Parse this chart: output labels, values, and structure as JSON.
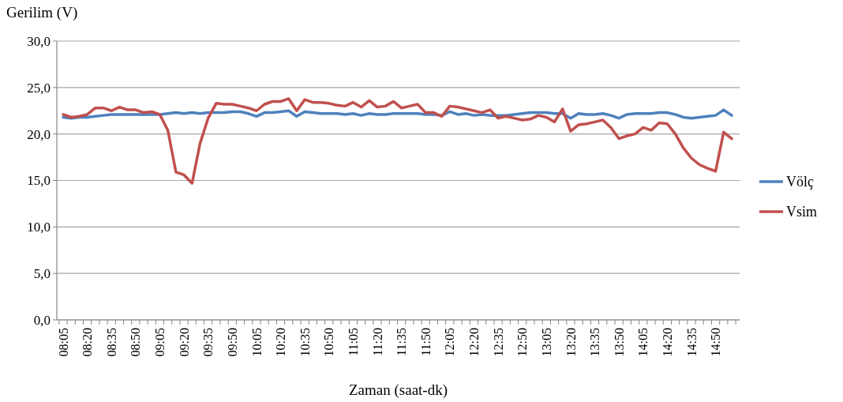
{
  "chart_data": {
    "type": "line",
    "ylabel": "Gerilim (V)",
    "xlabel": "Zaman (saat-dk)",
    "categories": [
      "08:05",
      null,
      null,
      "08:20",
      null,
      null,
      "08:35",
      null,
      null,
      "08:50",
      null,
      null,
      "09:05",
      null,
      null,
      "09:20",
      null,
      null,
      "09:35",
      null,
      null,
      "09:50",
      null,
      null,
      "10:05",
      null,
      null,
      "10:20",
      null,
      null,
      "10:35",
      null,
      null,
      "10:50",
      null,
      null,
      "11:05",
      null,
      null,
      "11:20",
      null,
      null,
      "11:35",
      null,
      null,
      "11:50",
      null,
      null,
      "12:05",
      null,
      null,
      "12:20",
      null,
      null,
      "12:35",
      null,
      null,
      "12:50",
      null,
      null,
      "13:05",
      null,
      null,
      "13:20",
      null,
      null,
      "13:35",
      null,
      null,
      "13:50",
      null,
      null,
      "14:05",
      null,
      null,
      "14:20",
      null,
      null,
      "14:35",
      null,
      null,
      "14:50",
      null,
      null
    ],
    "series": [
      {
        "name": "Völç",
        "color": "#4f81bd",
        "values": [
          21.8,
          21.7,
          21.8,
          21.8,
          21.9,
          22.0,
          22.1,
          22.1,
          22.1,
          22.1,
          22.1,
          22.1,
          22.1,
          22.2,
          22.3,
          22.2,
          22.3,
          22.2,
          22.3,
          22.3,
          22.3,
          22.4,
          22.4,
          22.2,
          21.9,
          22.3,
          22.3,
          22.4,
          22.5,
          21.9,
          22.4,
          22.3,
          22.2,
          22.2,
          22.2,
          22.1,
          22.2,
          22.0,
          22.2,
          22.1,
          22.1,
          22.2,
          22.2,
          22.2,
          22.2,
          22.1,
          22.1,
          22.0,
          22.4,
          22.1,
          22.2,
          22.0,
          22.1,
          22.0,
          22.0,
          22.0,
          22.1,
          22.2,
          22.3,
          22.3,
          22.3,
          22.2,
          22.2,
          21.7,
          22.2,
          22.1,
          22.1,
          22.2,
          22.0,
          21.7,
          22.1,
          22.2,
          22.2,
          22.2,
          22.3,
          22.3,
          22.1,
          21.8,
          21.7,
          21.8,
          21.9,
          22.0,
          22.6,
          22.0
        ]
      },
      {
        "name": "Vsim",
        "color": "#c0504d",
        "values": [
          22.1,
          21.8,
          21.9,
          22.1,
          22.8,
          22.8,
          22.5,
          22.9,
          22.6,
          22.6,
          22.3,
          22.4,
          22.1,
          20.4,
          15.9,
          15.6,
          14.7,
          19.0,
          21.7,
          23.3,
          23.2,
          23.2,
          23.0,
          22.8,
          22.5,
          23.2,
          23.5,
          23.5,
          23.8,
          22.5,
          23.7,
          23.4,
          23.4,
          23.3,
          23.1,
          23.0,
          23.4,
          22.9,
          23.6,
          22.9,
          23.0,
          23.5,
          22.8,
          23.0,
          23.2,
          22.3,
          22.3,
          21.9,
          23.0,
          22.9,
          22.7,
          22.5,
          22.3,
          22.6,
          21.7,
          21.9,
          21.7,
          21.5,
          21.6,
          22.0,
          21.8,
          21.3,
          22.7,
          20.3,
          21.0,
          21.1,
          21.3,
          21.5,
          20.7,
          19.5,
          19.8,
          20.0,
          20.7,
          20.4,
          21.2,
          21.1,
          20.0,
          18.5,
          17.4,
          16.7,
          16.3,
          16.0,
          20.2,
          19.5
        ]
      }
    ],
    "ylim": [
      0,
      30
    ],
    "yticks": [
      {
        "value": 0,
        "label": "0,0"
      },
      {
        "value": 5,
        "label": "5,0"
      },
      {
        "value": 10,
        "label": "10,0"
      },
      {
        "value": 15,
        "label": "15,0"
      },
      {
        "value": 20,
        "label": "20,0"
      },
      {
        "value": 25,
        "label": "25,0"
      },
      {
        "value": 30,
        "label": "30,0"
      }
    ],
    "grid": "y",
    "legend": "right",
    "marker": "none",
    "line_style": "solid"
  }
}
